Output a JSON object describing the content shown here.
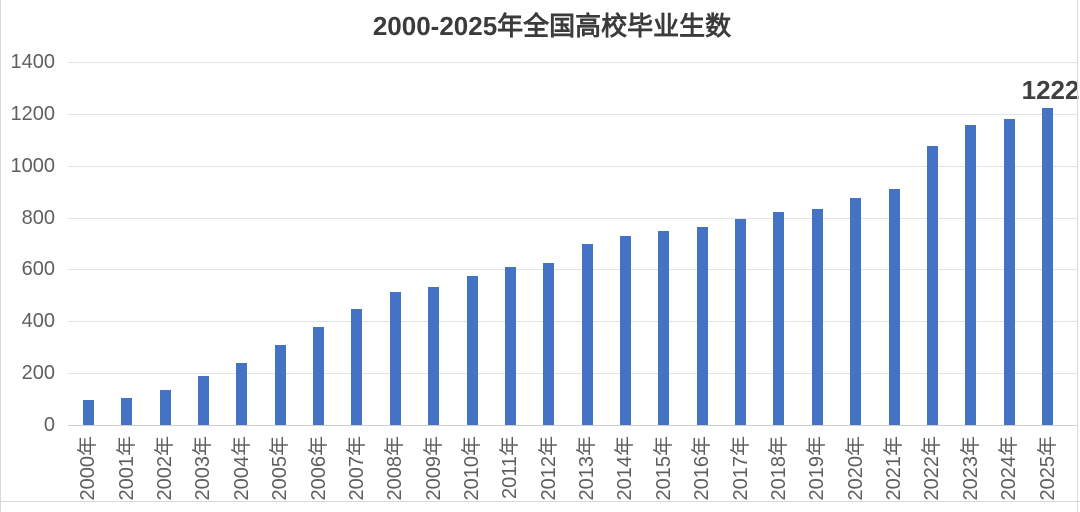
{
  "title": "2000-2025年全国高校毕业生数",
  "chart_data": {
    "type": "bar",
    "title": "2000-2025年全国高校毕业生数",
    "categories": [
      "2000年",
      "2001年",
      "2002年",
      "2003年",
      "2004年",
      "2005年",
      "2006年",
      "2007年",
      "2008年",
      "2009年",
      "2010年",
      "2011年",
      "2012年",
      "2013年",
      "2014年",
      "2015年",
      "2016年",
      "2017年",
      "2018年",
      "2019年",
      "2020年",
      "2021年",
      "2022年",
      "2023年",
      "2024年",
      "2025年"
    ],
    "values": [
      95,
      104,
      134,
      188,
      239,
      307,
      377,
      448,
      512,
      531,
      575,
      608,
      624,
      699,
      727,
      749,
      765,
      795,
      820,
      834,
      874,
      909,
      1076,
      1158,
      1179,
      1222
    ],
    "xlabel": "",
    "ylabel": "",
    "ylim": [
      0,
      1400
    ],
    "ytick_step": 200,
    "yticks": [
      0,
      200,
      400,
      600,
      800,
      1000,
      1200,
      1400
    ],
    "grid": true,
    "legend": false,
    "bar_color": "#4472c4",
    "data_label": {
      "text": "1222",
      "series_index": 25
    }
  }
}
